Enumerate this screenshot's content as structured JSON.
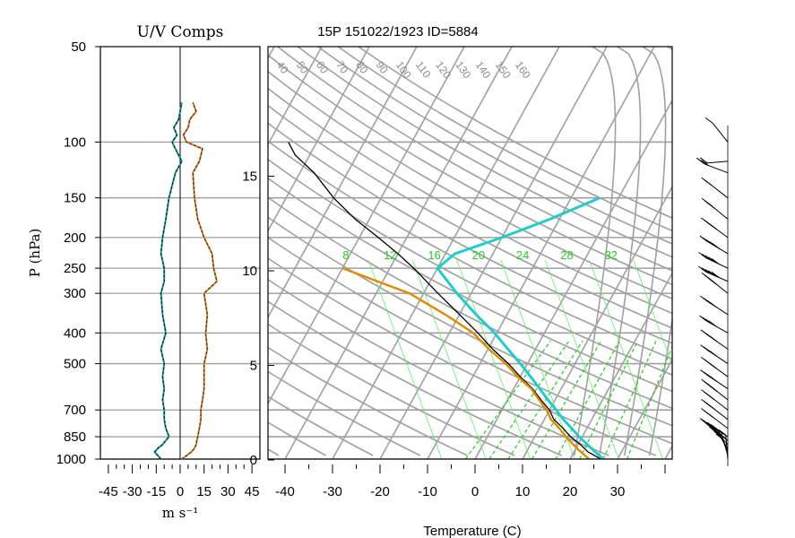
{
  "chart_data": [
    {
      "type": "line",
      "panel": "uv-components",
      "title": "U/V Comps",
      "xlabel": "m s⁻¹",
      "ylabel": "P (hPa)",
      "xlim": [
        -50,
        50
      ],
      "xticks": [
        "-45",
        "-30",
        "-15",
        "0",
        "15",
        "30",
        "45"
      ],
      "yticks": [
        "50",
        "100",
        "150",
        "200",
        "250",
        "300",
        "400",
        "500",
        "700",
        "850",
        "1000"
      ],
      "pressure_levels": [
        1000,
        975,
        950,
        925,
        900,
        850,
        800,
        750,
        700,
        650,
        600,
        550,
        500,
        450,
        400,
        350,
        300,
        275,
        250,
        225,
        200,
        175,
        150,
        125,
        115,
        105,
        100,
        95,
        90,
        85,
        80,
        75
      ],
      "series": [
        {
          "name": "U",
          "color": "#e08a00",
          "values": [
            1,
            4,
            7,
            9,
            10,
            11,
            12,
            13,
            13,
            14,
            15,
            15,
            15,
            17,
            16,
            17,
            15,
            23,
            21,
            20,
            15,
            11,
            9,
            8,
            12,
            14,
            4,
            2,
            5,
            6,
            10,
            8
          ]
        },
        {
          "name": "V",
          "color": "#1a9e9e",
          "values": [
            -12,
            -14,
            -16,
            -14,
            -11,
            -7,
            -9,
            -10,
            -10,
            -11,
            -10,
            -11,
            -10,
            -12,
            -9,
            -11,
            -12,
            -10,
            -10,
            -12,
            -11,
            -9,
            -7,
            -3,
            1,
            -3,
            -5,
            -2,
            -4,
            -1,
            0,
            1
          ]
        }
      ]
    },
    {
      "type": "line",
      "panel": "skew-t",
      "title": "15P 151022/1923 ID=5884",
      "xlabel": "Temperature (C)",
      "xlim": [
        -42,
        42
      ],
      "xticks": [
        "-40",
        "-30",
        "-20",
        "-10",
        "0",
        "10",
        "20",
        "30"
      ],
      "height_km_ticks": [
        "0",
        "5",
        "10",
        "15"
      ],
      "mixing_ratio_labels": [
        "8",
        "12",
        "16",
        "20",
        "24",
        "28",
        "32"
      ],
      "dry_adiabat_labels": [
        "40",
        "50",
        "60",
        "70",
        "80",
        "90",
        "100",
        "110",
        "120",
        "130",
        "140",
        "150",
        "160"
      ],
      "pressure_levels": [
        1000,
        950,
        900,
        850,
        800,
        750,
        700,
        650,
        600,
        550,
        500,
        450,
        400,
        350,
        300,
        250,
        225,
        200,
        175,
        150,
        125,
        110,
        100
      ],
      "series": [
        {
          "name": "Temperature",
          "color": "#000000",
          "values": [
            26.5,
            23,
            20.5,
            17.5,
            15,
            12,
            10,
            7,
            4,
            0,
            -4,
            -9,
            -14,
            -20,
            -27,
            -35,
            -40,
            -46,
            -53,
            -60,
            -67,
            -73,
            -76
          ]
        },
        {
          "name": "Dewpoint",
          "color": "#e08a00",
          "values": [
            24,
            21.5,
            19,
            16.5,
            14.2,
            11.4,
            9.4,
            6.6,
            3.7,
            -0.5,
            -4.6,
            -9.8,
            -15,
            -23,
            -33,
            -50
          ]
        },
        {
          "name": "Parcel",
          "color": "#22cccc",
          "values": [
            27,
            24.5,
            22,
            19.3,
            16.8,
            14,
            11.4,
            8.5,
            5.5,
            2.2,
            -1.5,
            -5.8,
            -10.5,
            -16.5,
            -23,
            -30,
            -28,
            -20,
            -12,
            -4
          ]
        }
      ]
    },
    {
      "type": "wind-barbs",
      "panel": "wind-profile",
      "pressure_levels": [
        1000,
        975,
        950,
        925,
        900,
        875,
        850,
        800,
        750,
        700,
        650,
        600,
        550,
        500,
        450,
        400,
        350,
        300,
        275,
        250,
        225,
        200,
        175,
        150,
        125,
        115,
        100
      ],
      "u": [
        1,
        4,
        7,
        9,
        10,
        11,
        11,
        12,
        13,
        13,
        14,
        15,
        15,
        15,
        17,
        16,
        17,
        15,
        23,
        21,
        20,
        15,
        11,
        9,
        8,
        12,
        4
      ],
      "v": [
        -12,
        -14,
        -16,
        -14,
        -11,
        -9,
        -7,
        -9,
        -10,
        -10,
        -11,
        -10,
        -11,
        -10,
        -12,
        -9,
        -11,
        -12,
        -10,
        -10,
        -12,
        -11,
        -9,
        -7,
        -3,
        1,
        -5
      ]
    }
  ]
}
